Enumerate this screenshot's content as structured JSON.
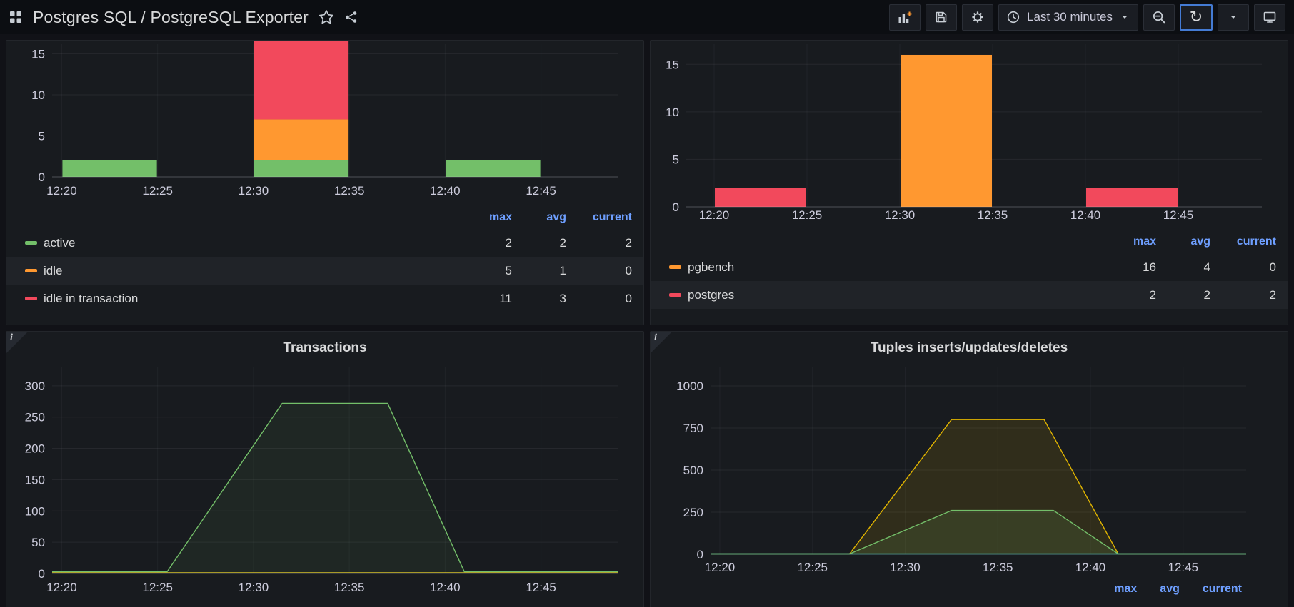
{
  "nav": {
    "title": "Postgres SQL / PostgreSQL Exporter",
    "time_range": "Last 30 minutes",
    "glyphs": {
      "refresh": "↻"
    }
  },
  "colors": {
    "green": "#73bf69",
    "orange": "#ff9830",
    "red": "#f2495c",
    "yellow": "#fade2a",
    "gold": "#e0b400",
    "teal": "#4db6ac",
    "link_blue": "#6e9fff",
    "focus_blue": "#447bd4"
  },
  "panels": {
    "connection_states": {
      "legend": {
        "headers": [
          "max",
          "avg",
          "current"
        ],
        "rows": [
          {
            "label": "active",
            "color": "#73bf69",
            "max": 2,
            "avg": 2,
            "current": 2
          },
          {
            "label": "idle",
            "color": "#ff9830",
            "max": 5,
            "avg": 1,
            "current": 0
          },
          {
            "label": "idle in transaction",
            "color": "#f2495c",
            "max": 11,
            "avg": 3,
            "current": 0
          }
        ]
      },
      "chart_data": {
        "type": "bar",
        "stacked": true,
        "x_ticks": [
          {
            "t": 20,
            "label": "12:20"
          },
          {
            "t": 25,
            "label": "12:25"
          },
          {
            "t": 30,
            "label": "12:30"
          },
          {
            "t": 35,
            "label": "12:35"
          },
          {
            "t": 40,
            "label": "12:40"
          },
          {
            "t": 45,
            "label": "12:45"
          }
        ],
        "bar_spans": [
          [
            20,
            25
          ],
          [
            30,
            35
          ],
          [
            40,
            45
          ]
        ],
        "series": [
          {
            "name": "active",
            "color": "#73bf69",
            "values": [
              2,
              2,
              2
            ]
          },
          {
            "name": "idle",
            "color": "#ff9830",
            "values": [
              0,
              5,
              0
            ]
          },
          {
            "name": "idle in transaction",
            "color": "#f2495c",
            "values": [
              0,
              11,
              0
            ]
          }
        ],
        "yticks": [
          0,
          5,
          10,
          15
        ],
        "ylim": [
          0,
          16.6
        ],
        "xlim_minutes": [
          19.5,
          49
        ]
      }
    },
    "databases": {
      "legend": {
        "headers": [
          "max",
          "avg",
          "current"
        ],
        "rows": [
          {
            "label": "pgbench",
            "color": "#ff9830",
            "max": 16,
            "avg": 4,
            "current": 0
          },
          {
            "label": "postgres",
            "color": "#f2495c",
            "max": 2,
            "avg": 2,
            "current": 2
          }
        ]
      },
      "chart_data": {
        "type": "bar",
        "stacked": true,
        "x_ticks": [
          {
            "t": 20,
            "label": "12:20"
          },
          {
            "t": 25,
            "label": "12:25"
          },
          {
            "t": 30,
            "label": "12:30"
          },
          {
            "t": 35,
            "label": "12:35"
          },
          {
            "t": 40,
            "label": "12:40"
          },
          {
            "t": 45,
            "label": "12:45"
          }
        ],
        "bar_spans": [
          [
            20,
            25
          ],
          [
            30,
            35
          ],
          [
            40,
            45
          ]
        ],
        "series": [
          {
            "name": "pgbench",
            "color": "#ff9830",
            "values": [
              0,
              16,
              0
            ]
          },
          {
            "name": "postgres",
            "color": "#f2495c",
            "values": [
              2,
              0,
              2
            ]
          }
        ],
        "yticks": [
          0,
          5,
          10,
          15
        ],
        "ylim": [
          0,
          17.5
        ],
        "xlim_minutes": [
          18.5,
          49.5
        ]
      }
    },
    "transactions": {
      "chart_data": {
        "type": "line",
        "title": "Transactions",
        "x_ticks": [
          {
            "t": 20,
            "label": "12:20"
          },
          {
            "t": 25,
            "label": "12:25"
          },
          {
            "t": 30,
            "label": "12:30"
          },
          {
            "t": 35,
            "label": "12:35"
          },
          {
            "t": 40,
            "label": "12:40"
          },
          {
            "t": 45,
            "label": "12:45"
          }
        ],
        "yticks": [
          0,
          50,
          100,
          150,
          200,
          250,
          300
        ],
        "ylim": [
          0,
          334
        ],
        "xlim_minutes": [
          19.5,
          49
        ],
        "series": [
          {
            "name": "green-series",
            "color": "#73bf69",
            "fill_opacity": 0.08,
            "points": [
              [
                19.5,
                3
              ],
              [
                25.5,
                3
              ],
              [
                31.5,
                272
              ],
              [
                37,
                272
              ],
              [
                41,
                3
              ],
              [
                49,
                3
              ]
            ]
          },
          {
            "name": "yellow-series",
            "color": "#fade2a",
            "fill_opacity": 0,
            "points": [
              [
                19.5,
                1
              ],
              [
                49,
                1
              ]
            ]
          }
        ]
      }
    },
    "tuples": {
      "legend_headers": [
        "max",
        "avg",
        "current"
      ],
      "chart_data": {
        "type": "line",
        "title": "Tuples inserts/updates/deletes",
        "x_ticks": [
          {
            "t": 20,
            "label": "12:20"
          },
          {
            "t": 25,
            "label": "12:25"
          },
          {
            "t": 30,
            "label": "12:30"
          },
          {
            "t": 35,
            "label": "12:35"
          },
          {
            "t": 40,
            "label": "12:40"
          },
          {
            "t": 45,
            "label": "12:45"
          }
        ],
        "yticks": [
          0,
          250,
          500,
          750,
          1000
        ],
        "ylim": [
          0,
          1127
        ],
        "xlim_minutes": [
          19.5,
          48.4
        ],
        "series": [
          {
            "name": "gold-series",
            "color": "#e0b400",
            "fill_opacity": 0.12,
            "points": [
              [
                19.5,
                2
              ],
              [
                27,
                2
              ],
              [
                32.5,
                800
              ],
              [
                37.5,
                800
              ],
              [
                41.5,
                2
              ],
              [
                48.4,
                2
              ]
            ]
          },
          {
            "name": "green-series",
            "color": "#73bf69",
            "fill_opacity": 0.12,
            "points": [
              [
                19.5,
                2
              ],
              [
                27,
                2
              ],
              [
                32.5,
                260
              ],
              [
                38,
                260
              ],
              [
                41.5,
                2
              ],
              [
                48.4,
                2
              ]
            ]
          },
          {
            "name": "teal-series",
            "color": "#4db6ac",
            "fill_opacity": 0,
            "points": [
              [
                19.5,
                2
              ],
              [
                48.4,
                2
              ]
            ]
          }
        ]
      }
    }
  }
}
